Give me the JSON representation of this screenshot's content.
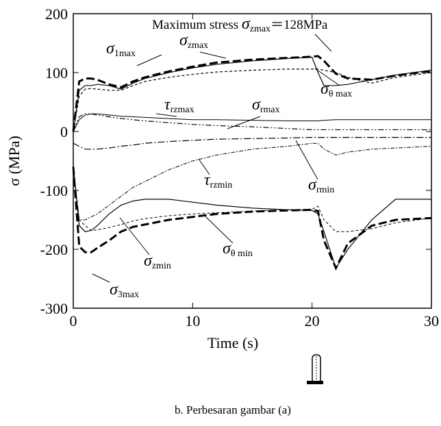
{
  "chart_data": {
    "type": "line",
    "x_label": "Time (s)",
    "y_label": "σ (MPa)",
    "caption": "b. Perbesaran gambar (a)",
    "xlim": [
      0,
      30
    ],
    "xticks": [
      0,
      10,
      20,
      30
    ],
    "ylim": [
      -300,
      200
    ],
    "yticks": [
      -300,
      -200,
      -100,
      0,
      100,
      200
    ],
    "x": [
      0,
      0.5,
      1,
      1.5,
      2,
      3,
      4,
      5,
      6,
      8,
      10,
      12,
      15,
      18,
      20,
      20.5,
      21,
      22,
      23,
      25,
      27,
      30
    ],
    "series": [
      {
        "color": "#000",
        "dash": "12 5",
        "width": 3,
        "values": [
          0,
          85,
          90,
          90,
          88,
          80,
          75,
          85,
          92,
          102,
          110,
          117,
          122,
          125,
          127,
          128,
          120,
          98,
          90,
          88,
          95,
          103
        ]
      },
      {
        "color": "#000",
        "dash": "none",
        "width": 1.2,
        "values": [
          0,
          70,
          78,
          78,
          80,
          78,
          72,
          82,
          90,
          100,
          108,
          114,
          120,
          124,
          126,
          100,
          78,
          78,
          80,
          88,
          96,
          104
        ]
      },
      {
        "color": "#000",
        "dash": "4 3",
        "width": 1.2,
        "values": [
          0,
          60,
          72,
          73,
          72,
          70,
          70,
          78,
          85,
          92,
          97,
          101,
          104,
          106,
          106,
          106,
          104,
          100,
          92,
          82,
          92,
          100
        ]
      },
      {
        "color": "#000",
        "dash": "8 3 2 3 2 3",
        "width": 1.2,
        "values": [
          0,
          25,
          30,
          30,
          28,
          25,
          22,
          20,
          18,
          15,
          12,
          10,
          8,
          5,
          3,
          3,
          3,
          3,
          3,
          3,
          3,
          3
        ]
      },
      {
        "color": "#000",
        "dash": "none",
        "width": 1,
        "values": [
          0,
          20,
          28,
          30,
          30,
          28,
          26,
          25,
          24,
          22,
          20,
          20,
          19,
          18,
          18,
          18,
          19,
          20,
          20,
          20,
          20,
          20
        ]
      },
      {
        "color": "#000",
        "dash": "10 3 2 3",
        "width": 1.2,
        "values": [
          -20,
          -25,
          -30,
          -30,
          -30,
          -28,
          -25,
          -23,
          -20,
          -17,
          -15,
          -13,
          -12,
          -11,
          -10,
          -10,
          -10,
          -10,
          -10,
          -10,
          -10,
          -10
        ]
      },
      {
        "color": "#000",
        "dash": "6 2 2 2",
        "width": 1,
        "values": [
          -60,
          -150,
          -150,
          -145,
          -140,
          -125,
          -110,
          -95,
          -85,
          -65,
          -50,
          -40,
          -30,
          -25,
          -20,
          -20,
          -30,
          -40,
          -35,
          -30,
          -28,
          -25
        ]
      },
      {
        "color": "#000",
        "dash": "none",
        "width": 1.2,
        "values": [
          -60,
          -160,
          -170,
          -168,
          -160,
          -140,
          -125,
          -118,
          -115,
          -115,
          -120,
          -125,
          -130,
          -133,
          -134,
          -140,
          -170,
          -232,
          -200,
          -150,
          -115,
          -115
        ]
      },
      {
        "color": "#000",
        "dash": "12 5",
        "width": 3,
        "values": [
          -60,
          -195,
          -205,
          -205,
          -198,
          -185,
          -170,
          -162,
          -158,
          -150,
          -145,
          -140,
          -136,
          -134,
          -133,
          -135,
          -185,
          -232,
          -190,
          -160,
          -150,
          -147
        ]
      },
      {
        "color": "#000",
        "dash": "4 3",
        "width": 1,
        "values": [
          -60,
          -150,
          -160,
          -168,
          -167,
          -163,
          -158,
          -152,
          -148,
          -143,
          -140,
          -138,
          -135,
          -133,
          -132,
          -127,
          -150,
          -170,
          -170,
          -165,
          -155,
          -147
        ]
      }
    ],
    "annotations": [
      {
        "prefix": "Maximum stress ",
        "symbol": "σ",
        "subscript": "zmax",
        "suffix": "＝128MPa"
      },
      {
        "symbol": "σ",
        "subscript": "1max"
      },
      {
        "symbol": "σ",
        "subscript": "zmax"
      },
      {
        "symbol": "σ",
        "subscript": "θ max"
      },
      {
        "symbol": "τ",
        "subscript": "rzmax"
      },
      {
        "symbol": "σ",
        "subscript": "rmax"
      },
      {
        "symbol": "τ",
        "subscript": "rzmin"
      },
      {
        "symbol": "σ",
        "subscript": "rmin"
      },
      {
        "symbol": "σ",
        "subscript": "zmin"
      },
      {
        "symbol": "σ",
        "subscript": "θ min"
      },
      {
        "symbol": "σ",
        "subscript": "3max"
      }
    ]
  }
}
